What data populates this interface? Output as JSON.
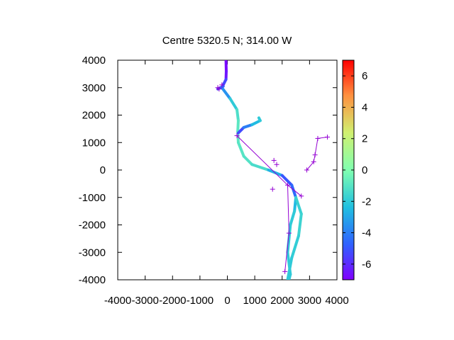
{
  "chart_data": {
    "type": "scatter",
    "title": "Centre 5320.5 N; 314.00  W",
    "xlim": [
      -4000,
      4000
    ],
    "ylim": [
      -4000,
      4000
    ],
    "xticks": [
      -4000,
      -3000,
      -2000,
      -1000,
      0,
      1000,
      2000,
      3000,
      4000
    ],
    "yticks": [
      -4000,
      -3000,
      -2000,
      -1000,
      0,
      1000,
      2000,
      3000,
      4000
    ],
    "grid": false,
    "colorbar": {
      "min": -7,
      "max": 7,
      "ticks": [
        -6,
        -4,
        -2,
        0,
        2,
        4,
        6
      ],
      "palette": "rainbow"
    },
    "track": {
      "points": [
        {
          "x": -50,
          "y": 4000,
          "c": -6.8
        },
        {
          "x": -40,
          "y": 3600,
          "c": -6.8
        },
        {
          "x": -50,
          "y": 3300,
          "c": -6.2
        },
        {
          "x": -200,
          "y": 3000,
          "c": -4.5
        },
        {
          "x": 100,
          "y": 2600,
          "c": -2.5
        },
        {
          "x": 350,
          "y": 2200,
          "c": -1.5
        },
        {
          "x": 400,
          "y": 1800,
          "c": -1.0
        },
        {
          "x": 380,
          "y": 1400,
          "c": -0.8
        },
        {
          "x": 400,
          "y": 1000,
          "c": -1.0
        },
        {
          "x": 600,
          "y": 500,
          "c": -1.0
        },
        {
          "x": 900,
          "y": 200,
          "c": -1.2
        },
        {
          "x": 1500,
          "y": 0,
          "c": -1.5
        },
        {
          "x": 2000,
          "y": -200,
          "c": -4.0
        },
        {
          "x": 2350,
          "y": -550,
          "c": -6.0
        },
        {
          "x": 2500,
          "y": -1000,
          "c": -3.0
        },
        {
          "x": 2450,
          "y": -1500,
          "c": -2.0
        },
        {
          "x": 2300,
          "y": -2000,
          "c": -2.0
        },
        {
          "x": 2200,
          "y": -3000,
          "c": -2.0
        },
        {
          "x": 2300,
          "y": -3800,
          "c": -2.0
        },
        {
          "x": 2250,
          "y": -4000,
          "c": -2.0
        }
      ],
      "branches": [
        {
          "points": [
            {
              "x": 2500,
              "y": -1000,
              "c": -2.0
            },
            {
              "x": 2700,
              "y": -1600,
              "c": -1.5
            },
            {
              "x": 2600,
              "y": -2400,
              "c": -1.8
            },
            {
              "x": 2350,
              "y": -3200,
              "c": -2.0
            },
            {
              "x": 2200,
              "y": -4000,
              "c": -2.0
            }
          ]
        },
        {
          "points": [
            {
              "x": 400,
              "y": 1350,
              "c": -5.5
            },
            {
              "x": 600,
              "y": 1550,
              "c": -5.0
            },
            {
              "x": 900,
              "y": 1650,
              "c": -3.0
            },
            {
              "x": 1200,
              "y": 1800,
              "c": -2.0
            },
            {
              "x": 1150,
              "y": 1900,
              "c": -2.0
            }
          ]
        },
        {
          "points": [
            {
              "x": -350,
              "y": 2950,
              "c": -5.0
            },
            {
              "x": -250,
              "y": 3000,
              "c": -5.0
            },
            {
              "x": -150,
              "y": 3050,
              "c": -4.5
            }
          ]
        }
      ]
    },
    "markers": {
      "points": [
        {
          "x": -200,
          "y": 3100
        },
        {
          "x": -300,
          "y": 2950
        },
        {
          "x": -350,
          "y": 3000
        },
        {
          "x": 350,
          "y": 1250
        },
        {
          "x": 1700,
          "y": 350
        },
        {
          "x": 1800,
          "y": 200
        },
        {
          "x": 1650,
          "y": -700
        },
        {
          "x": 2200,
          "y": -550
        },
        {
          "x": 2250,
          "y": -2300
        },
        {
          "x": 2100,
          "y": -3700
        },
        {
          "x": 2700,
          "y": -950
        },
        {
          "x": 2900,
          "y": 0
        },
        {
          "x": 3150,
          "y": 300
        },
        {
          "x": 3200,
          "y": 550
        },
        {
          "x": 3300,
          "y": 1150
        },
        {
          "x": 3650,
          "y": 1200
        }
      ],
      "lines": [
        [
          {
            "x": 350,
            "y": 1250
          },
          {
            "x": 2200,
            "y": -550
          },
          {
            "x": 2250,
            "y": -2300
          },
          {
            "x": 2100,
            "y": -3700
          }
        ],
        [
          {
            "x": 2200,
            "y": -550
          },
          {
            "x": 2700,
            "y": -950
          }
        ],
        [
          {
            "x": 2900,
            "y": 0
          },
          {
            "x": 3150,
            "y": 300
          },
          {
            "x": 3200,
            "y": 550
          },
          {
            "x": 3300,
            "y": 1150
          },
          {
            "x": 3650,
            "y": 1200
          }
        ]
      ],
      "color": "#9400d3"
    }
  }
}
